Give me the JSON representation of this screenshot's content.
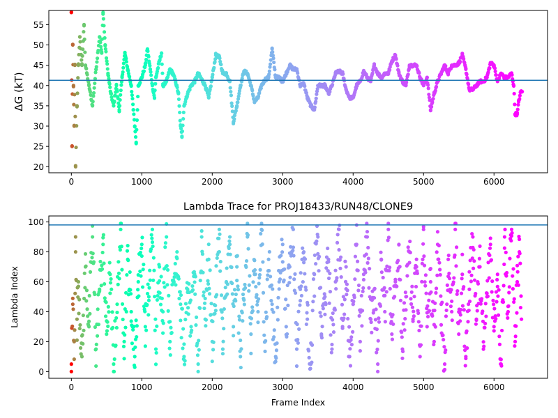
{
  "chart_data": [
    {
      "type": "scatter",
      "title": "",
      "xlabel": "",
      "ylabel": "ΔG (kT)",
      "xlim": [
        -320,
        6760
      ],
      "ylim": [
        18.5,
        58.5
      ],
      "xticks": [
        0,
        1000,
        2000,
        3000,
        4000,
        5000,
        6000
      ],
      "yticks": [
        20,
        25,
        30,
        35,
        40,
        45,
        50,
        55
      ],
      "hline": 41.3,
      "hline_color": "#1f77b4",
      "colormap": "rainbow (early frames red/orange/yellow, middle green/cyan/blue, late frames purple)",
      "trace": [
        [
          0,
          58
        ],
        [
          10,
          25
        ],
        [
          20,
          50
        ],
        [
          30,
          40
        ],
        [
          40,
          30
        ],
        [
          50,
          45
        ],
        [
          60,
          20
        ],
        [
          80,
          35
        ],
        [
          100,
          45
        ],
        [
          120,
          52
        ],
        [
          150,
          45
        ],
        [
          180,
          55
        ],
        [
          200,
          45
        ],
        [
          250,
          40
        ],
        [
          300,
          35
        ],
        [
          350,
          44
        ],
        [
          400,
          52
        ],
        [
          430,
          48
        ],
        [
          450,
          58
        ],
        [
          480,
          50
        ],
        [
          520,
          43
        ],
        [
          560,
          38
        ],
        [
          600,
          35
        ],
        [
          640,
          40
        ],
        [
          680,
          34
        ],
        [
          720,
          42
        ],
        [
          760,
          48
        ],
        [
          800,
          44
        ],
        [
          850,
          40
        ],
        [
          880,
          34
        ],
        [
          900,
          30
        ],
        [
          920,
          26
        ],
        [
          950,
          40
        ],
        [
          1000,
          42
        ],
        [
          1050,
          45
        ],
        [
          1080,
          49
        ],
        [
          1120,
          44
        ],
        [
          1150,
          40
        ],
        [
          1180,
          37
        ],
        [
          1200,
          42
        ],
        [
          1250,
          46
        ],
        [
          1280,
          48
        ],
        [
          1300,
          40
        ],
        [
          1350,
          41
        ],
        [
          1400,
          44
        ],
        [
          1440,
          43
        ],
        [
          1480,
          41
        ],
        [
          1520,
          38
        ],
        [
          1550,
          30
        ],
        [
          1570,
          27.5
        ],
        [
          1600,
          35
        ],
        [
          1650,
          38
        ],
        [
          1700,
          40
        ],
        [
          1750,
          41
        ],
        [
          1800,
          43
        ],
        [
          1850,
          41.5
        ],
        [
          1900,
          40
        ],
        [
          1950,
          37
        ],
        [
          2000,
          42
        ],
        [
          2050,
          47.5
        ],
        [
          2100,
          47
        ],
        [
          2150,
          43
        ],
        [
          2200,
          43
        ],
        [
          2250,
          41
        ],
        [
          2300,
          31
        ],
        [
          2350,
          35
        ],
        [
          2400,
          40
        ],
        [
          2450,
          43.5
        ],
        [
          2500,
          43
        ],
        [
          2550,
          40
        ],
        [
          2600,
          36
        ],
        [
          2650,
          37
        ],
        [
          2700,
          40
        ],
        [
          2750,
          41.5
        ],
        [
          2800,
          42
        ],
        [
          2850,
          49
        ],
        [
          2900,
          42
        ],
        [
          2950,
          42
        ],
        [
          3000,
          41
        ],
        [
          3050,
          43
        ],
        [
          3100,
          45
        ],
        [
          3150,
          44
        ],
        [
          3200,
          44
        ],
        [
          3250,
          40
        ],
        [
          3300,
          40.5
        ],
        [
          3350,
          37
        ],
        [
          3400,
          35
        ],
        [
          3450,
          34
        ],
        [
          3500,
          40
        ],
        [
          3550,
          40
        ],
        [
          3600,
          40
        ],
        [
          3650,
          38
        ],
        [
          3700,
          40
        ],
        [
          3750,
          43
        ],
        [
          3800,
          43.5
        ],
        [
          3850,
          43
        ],
        [
          3900,
          39
        ],
        [
          3950,
          37
        ],
        [
          4000,
          37
        ],
        [
          4050,
          40
        ],
        [
          4100,
          41
        ],
        [
          4150,
          43.5
        ],
        [
          4200,
          42
        ],
        [
          4250,
          41
        ],
        [
          4300,
          45
        ],
        [
          4350,
          43
        ],
        [
          4400,
          42
        ],
        [
          4450,
          43
        ],
        [
          4500,
          43
        ],
        [
          4550,
          46
        ],
        [
          4600,
          47.5
        ],
        [
          4650,
          43
        ],
        [
          4700,
          41
        ],
        [
          4750,
          40
        ],
        [
          4800,
          45
        ],
        [
          4850,
          45
        ],
        [
          4900,
          45
        ],
        [
          4950,
          42
        ],
        [
          5000,
          40
        ],
        [
          5050,
          42
        ],
        [
          5100,
          34
        ],
        [
          5150,
          38
        ],
        [
          5200,
          41
        ],
        [
          5250,
          43
        ],
        [
          5300,
          45
        ],
        [
          5350,
          43
        ],
        [
          5400,
          45
        ],
        [
          5450,
          45
        ],
        [
          5500,
          45.5
        ],
        [
          5550,
          47.5
        ],
        [
          5600,
          44
        ],
        [
          5650,
          39
        ],
        [
          5700,
          39
        ],
        [
          5750,
          40
        ],
        [
          5800,
          41
        ],
        [
          5850,
          41
        ],
        [
          5900,
          42
        ],
        [
          5950,
          45.5
        ],
        [
          6000,
          45
        ],
        [
          6050,
          41
        ],
        [
          6100,
          43
        ],
        [
          6150,
          42
        ],
        [
          6200,
          42
        ],
        [
          6250,
          43
        ],
        [
          6280,
          40
        ],
        [
          6300,
          33
        ],
        [
          6330,
          33
        ],
        [
          6350,
          36
        ],
        [
          6380,
          38.5
        ],
        [
          6400,
          38.5
        ]
      ]
    },
    {
      "type": "scatter",
      "title": "Lambda Trace for PROJ18433/RUN48/CLONE9",
      "xlabel": "Frame Index",
      "ylabel": "Lambda Index",
      "xlim": [
        -320,
        6760
      ],
      "ylim": [
        -4.5,
        104
      ],
      "xticks": [
        0,
        1000,
        2000,
        3000,
        4000,
        5000,
        6000
      ],
      "yticks": [
        0,
        20,
        40,
        60,
        80,
        100
      ],
      "hline": 98,
      "hline_color": "#1f77b4",
      "colormap": "rainbow (early frames red/orange/yellow, middle green/cyan/blue, late frames purple)",
      "trace": [
        [
          0,
          5
        ],
        [
          20,
          45
        ],
        [
          40,
          20
        ],
        [
          60,
          80
        ],
        [
          80,
          35
        ],
        [
          100,
          60
        ],
        [
          150,
          10
        ],
        [
          200,
          70
        ],
        [
          250,
          30
        ],
        [
          300,
          90
        ],
        [
          350,
          15
        ],
        [
          400,
          55
        ],
        [
          450,
          85
        ],
        [
          500,
          25
        ],
        [
          550,
          65
        ],
        [
          600,
          5
        ],
        [
          650,
          45
        ],
        [
          700,
          95
        ],
        [
          750,
          20
        ],
        [
          800,
          75
        ],
        [
          850,
          40
        ],
        [
          900,
          10
        ],
        [
          950,
          60
        ],
        [
          1000,
          85
        ],
        [
          1050,
          30
        ],
        [
          1100,
          50
        ],
        [
          1150,
          95
        ],
        [
          1200,
          15
        ],
        [
          1250,
          70
        ],
        [
          1300,
          40
        ],
        [
          1350,
          90
        ],
        [
          1400,
          20
        ],
        [
          1450,
          60
        ],
        [
          1500,
          80
        ],
        [
          1550,
          45
        ],
        [
          1600,
          10
        ],
        [
          1650,
          55
        ],
        [
          1700,
          30
        ],
        [
          1750,
          65
        ],
        [
          1800,
          5
        ],
        [
          1850,
          90
        ],
        [
          1900,
          35
        ],
        [
          1950,
          75
        ],
        [
          2000,
          20
        ],
        [
          2050,
          50
        ],
        [
          2100,
          95
        ],
        [
          2150,
          15
        ],
        [
          2200,
          60
        ],
        [
          2250,
          85
        ],
        [
          2300,
          30
        ],
        [
          2350,
          70
        ],
        [
          2400,
          10
        ],
        [
          2450,
          55
        ],
        [
          2500,
          90
        ],
        [
          2550,
          25
        ],
        [
          2600,
          65
        ],
        [
          2650,
          40
        ],
        [
          2700,
          95
        ],
        [
          2750,
          20
        ],
        [
          2800,
          75
        ],
        [
          2850,
          45
        ],
        [
          2900,
          10
        ],
        [
          2950,
          60
        ],
        [
          3000,
          85
        ],
        [
          3050,
          30
        ],
        [
          3100,
          70
        ],
        [
          3150,
          95
        ],
        [
          3200,
          15
        ],
        [
          3250,
          55
        ],
        [
          3300,
          80
        ],
        [
          3350,
          35
        ],
        [
          3400,
          5
        ],
        [
          3450,
          65
        ],
        [
          3500,
          90
        ],
        [
          3550,
          25
        ],
        [
          3600,
          50
        ],
        [
          3650,
          75
        ],
        [
          3700,
          15
        ],
        [
          3750,
          60
        ],
        [
          3800,
          95
        ],
        [
          3850,
          30
        ],
        [
          3900,
          70
        ],
        [
          3950,
          10
        ],
        [
          4000,
          45
        ],
        [
          4050,
          85
        ],
        [
          4100,
          20
        ],
        [
          4150,
          65
        ],
        [
          4200,
          90
        ],
        [
          4250,
          35
        ],
        [
          4300,
          55
        ],
        [
          4350,
          5
        ],
        [
          4400,
          75
        ],
        [
          4450,
          40
        ],
        [
          4500,
          95
        ],
        [
          4550,
          25
        ],
        [
          4600,
          60
        ],
        [
          4650,
          85
        ],
        [
          4700,
          15
        ],
        [
          4750,
          50
        ],
        [
          4800,
          80
        ],
        [
          4850,
          35
        ],
        [
          4900,
          70
        ],
        [
          4950,
          10
        ],
        [
          5000,
          95
        ],
        [
          5050,
          30
        ],
        [
          5100,
          60
        ],
        [
          5150,
          20
        ],
        [
          5200,
          85
        ],
        [
          5250,
          45
        ],
        [
          5300,
          5
        ],
        [
          5350,
          75
        ],
        [
          5400,
          40
        ],
        [
          5450,
          95
        ],
        [
          5500,
          25
        ],
        [
          5550,
          65
        ],
        [
          5600,
          10
        ],
        [
          5650,
          55
        ],
        [
          5700,
          90
        ],
        [
          5750,
          35
        ],
        [
          5800,
          70
        ],
        [
          5850,
          15
        ],
        [
          5900,
          50
        ],
        [
          5950,
          85
        ],
        [
          6000,
          30
        ],
        [
          6050,
          65
        ],
        [
          6100,
          5
        ],
        [
          6150,
          90
        ],
        [
          6200,
          40
        ],
        [
          6250,
          95
        ],
        [
          6300,
          20
        ],
        [
          6330,
          60
        ],
        [
          6360,
          80
        ],
        [
          6390,
          35
        ]
      ]
    }
  ]
}
